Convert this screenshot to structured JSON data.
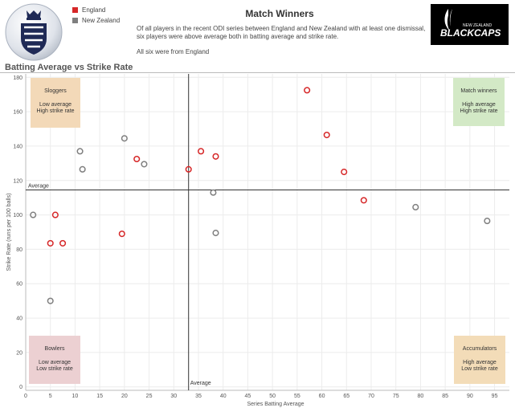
{
  "header": {
    "title": "Match Winners",
    "description": [
      "Of all players in the recent ODI series between England and New Zealand with at least one dismissal, six players were above average both in batting average and strike rate.",
      "All six were from England"
    ],
    "section_title": "Batting Average vs Strike Rate"
  },
  "legend": [
    {
      "name": "England",
      "color": "#d62728"
    },
    {
      "name": "New Zealand",
      "color": "#7f7f7f"
    }
  ],
  "logos": {
    "england": "england-cricket-crest",
    "new_zealand": {
      "line1": "NEW ZEALAND",
      "line2": "BLACKCAPS"
    }
  },
  "chart_data": {
    "type": "scatter",
    "xlabel": "Series Batting Average",
    "ylabel": "Strike Rate (runs per 100 balls)",
    "xlim": [
      0,
      98
    ],
    "ylim": [
      -2,
      182
    ],
    "x_ticks": [
      0,
      5,
      10,
      15,
      20,
      25,
      30,
      35,
      40,
      45,
      50,
      55,
      60,
      65,
      70,
      75,
      80,
      85,
      90,
      95
    ],
    "y_ticks": [
      0,
      20,
      40,
      60,
      80,
      100,
      120,
      140,
      160,
      180
    ],
    "grid": true,
    "average": {
      "x": 33,
      "y": 114.5,
      "x_label": "Average",
      "y_label": "Average"
    },
    "quadrants": [
      {
        "name": "sloggers",
        "title": "Sloggers",
        "line1": "Low average",
        "line2": "High strike rate",
        "color": "#f3d9b8"
      },
      {
        "name": "match-winners",
        "title": "Match winners",
        "line1": "High average",
        "line2": "High strike rate",
        "color": "#d3e9c6"
      },
      {
        "name": "bowlers",
        "title": "Bowlers",
        "line1": "Low average",
        "line2": "Low strike rate",
        "color": "#ecd0d2"
      },
      {
        "name": "accumulators",
        "title": "Accumulators",
        "line1": "High average",
        "line2": "Low strike rate",
        "color": "#f3dcb8"
      }
    ],
    "series": [
      {
        "name": "England",
        "color": "#d62728",
        "points": [
          [
            57,
            172.5
          ],
          [
            61,
            146.5
          ],
          [
            64.5,
            125
          ],
          [
            68.5,
            108.5
          ],
          [
            35.5,
            137
          ],
          [
            38.5,
            134
          ],
          [
            33,
            126.5
          ],
          [
            22.5,
            132.5
          ],
          [
            6,
            100
          ],
          [
            5,
            83.5
          ],
          [
            7.5,
            83.5
          ],
          [
            19.5,
            89
          ]
        ]
      },
      {
        "name": "New Zealand",
        "color": "#7f7f7f",
        "points": [
          [
            20,
            144.5
          ],
          [
            11,
            137
          ],
          [
            11.5,
            126.5
          ],
          [
            24,
            129.5
          ],
          [
            38,
            113
          ],
          [
            38.5,
            89.5
          ],
          [
            1.5,
            100
          ],
          [
            5,
            50
          ],
          [
            79,
            104.5
          ],
          [
            93.5,
            96.5
          ]
        ]
      }
    ]
  }
}
